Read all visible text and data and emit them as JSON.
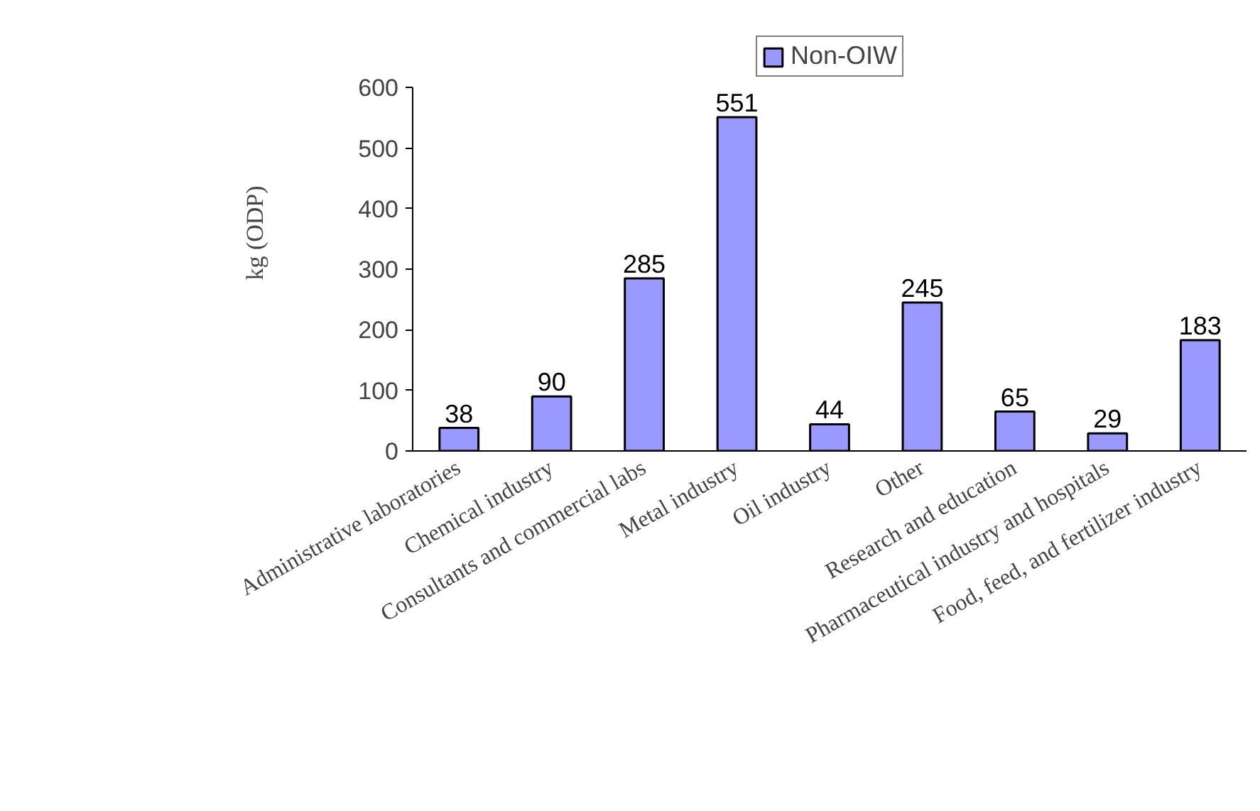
{
  "chart_data": {
    "type": "bar",
    "ylabel": "kg (ODP)",
    "categories": [
      "Administrative laboratories",
      "Chemical industry",
      "Consultants and commercial labs",
      "Metal industry",
      "Oil industry",
      "Other",
      "Research and education",
      "Pharmaceutical industry and hospitals",
      "Food, feed, and fertilizer industry"
    ],
    "series": [
      {
        "name": "Non-OIW",
        "color": "#9999ff",
        "values": [
          38,
          90,
          285,
          551,
          44,
          245,
          65,
          29,
          183
        ]
      }
    ],
    "ylim": [
      0,
      600
    ],
    "yticks": [
      0,
      100,
      200,
      300,
      400,
      500,
      600
    ],
    "data_labels": true,
    "legend": "top",
    "grid": false
  }
}
